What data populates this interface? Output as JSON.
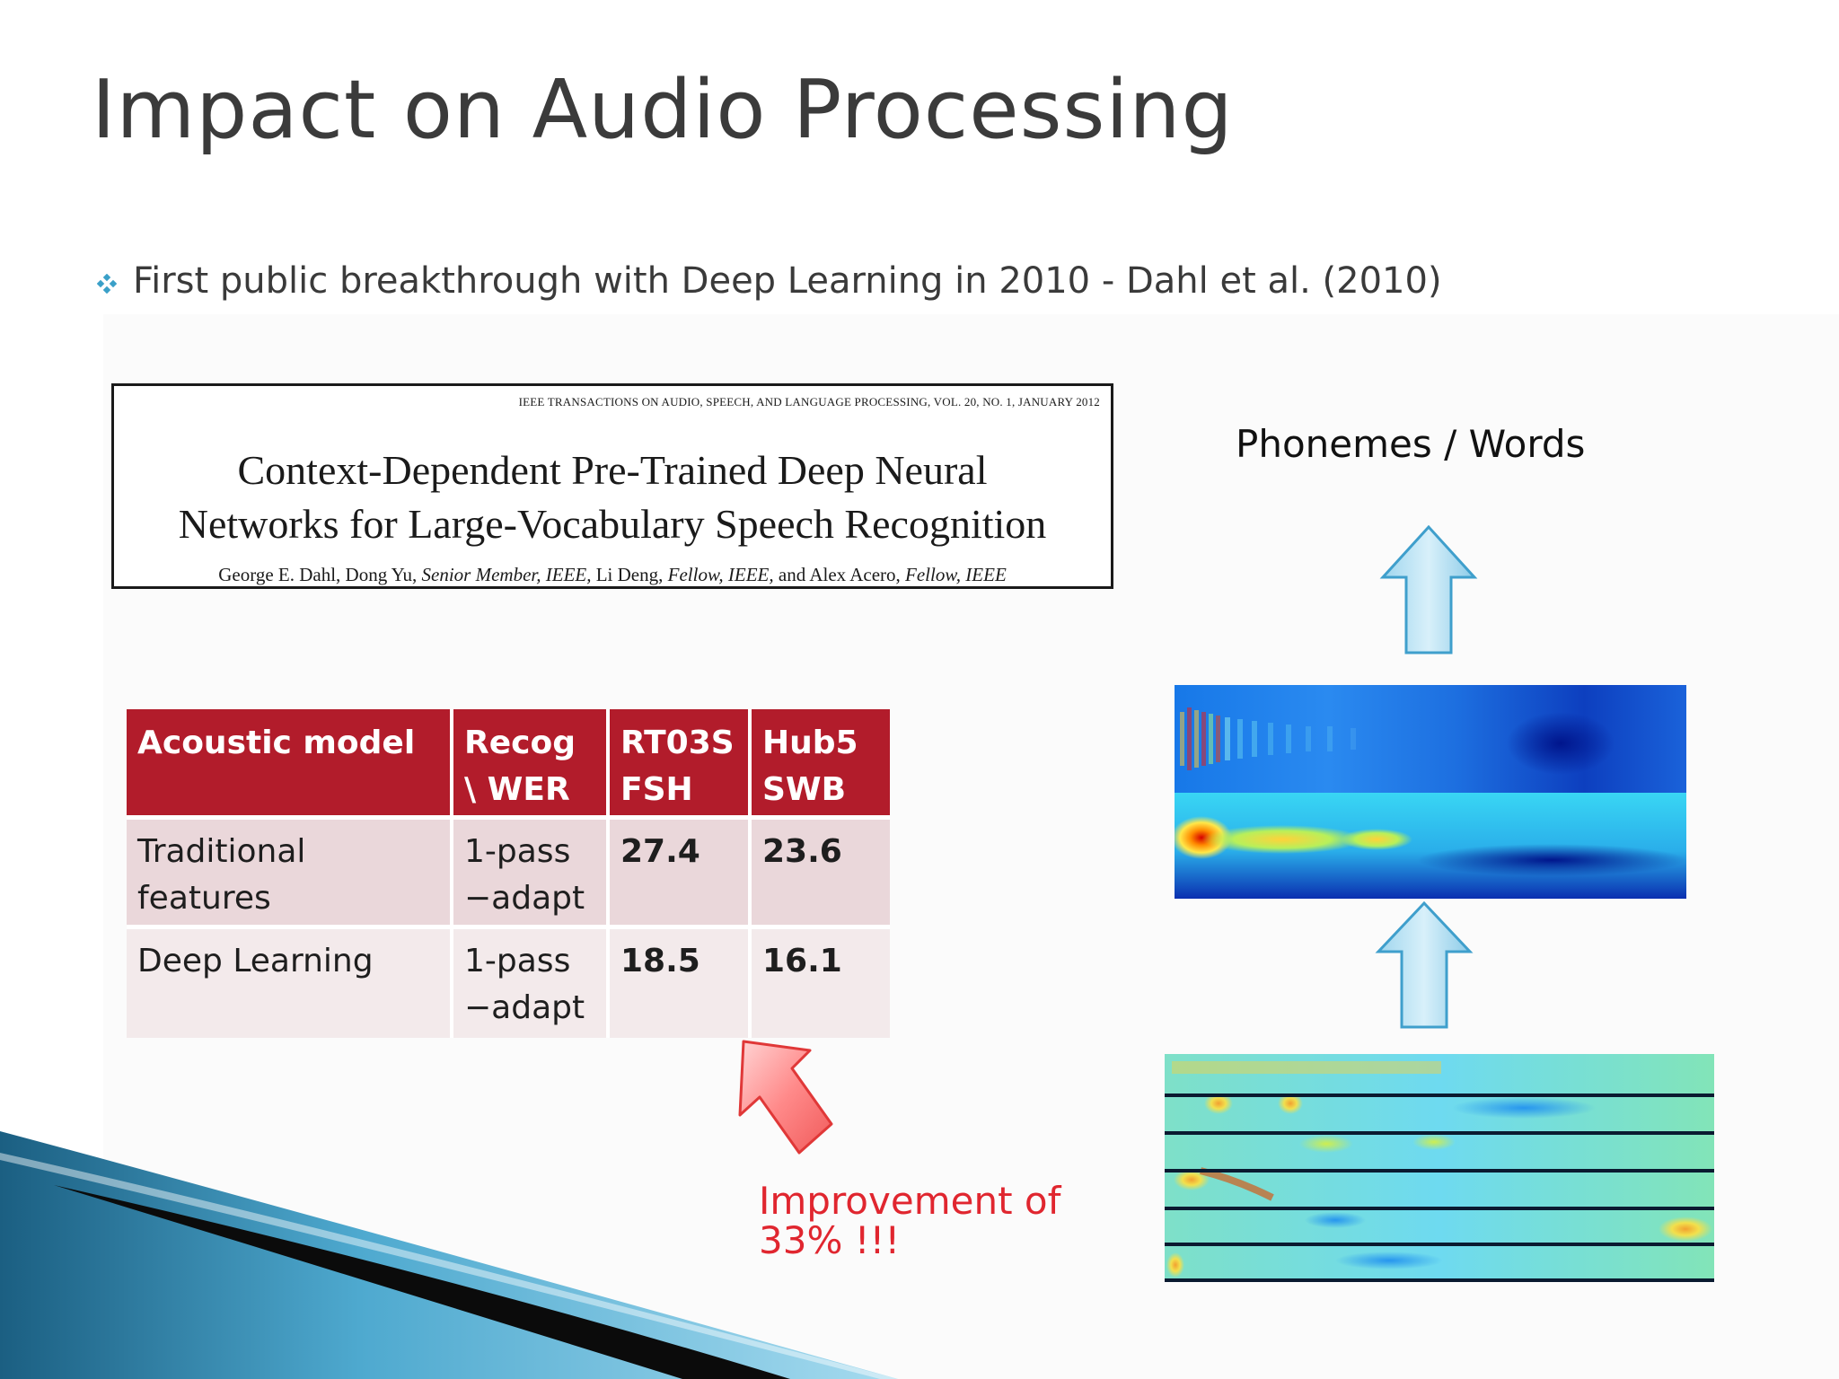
{
  "slide": {
    "title": "Impact on Audio Processing",
    "bullet": {
      "icon": "diamond-bullet-icon",
      "text": "First public breakthrough with Deep Learning in 2010 - Dahl et al. (2010)"
    }
  },
  "paper": {
    "journal": "IEEE TRANSACTIONS ON AUDIO, SPEECH, AND LANGUAGE PROCESSING, VOL. 20, NO. 1, JANUARY 2012",
    "title_line1": "Context-Dependent Pre-Trained Deep Neural",
    "title_line2": "Networks for Large-Vocabulary Speech Recognition",
    "authors": {
      "a1": "George E. Dahl,",
      "a2": "Dong Yu,",
      "a2_role": "Senior Member, IEEE,",
      "a3": "Li Deng,",
      "a3_role": "Fellow, IEEE,",
      "and": "and",
      "a4": "Alex Acero,",
      "a4_role": "Fellow, IEEE"
    }
  },
  "table": {
    "headers": {
      "c1": "Acoustic model",
      "c2_l1": "Recog",
      "c2_l2": "\\ WER",
      "c3_l1": "RT03S",
      "c3_l2": "FSH",
      "c4_l1": "Hub5",
      "c4_l2": "SWB"
    },
    "rows": [
      {
        "model_l1": "Traditional",
        "model_l2": "features",
        "recog_l1": "1-pass",
        "recog_l2": "−adapt",
        "rt03s": "27.4",
        "hub5": "23.6"
      },
      {
        "model_l1": "Deep Learning",
        "model_l2": "",
        "recog_l1": "1-pass",
        "recog_l2": "−adapt",
        "rt03s": "18.5",
        "hub5": "16.1"
      }
    ],
    "header_color": "#b21c2b"
  },
  "diagram": {
    "output_label": "Phonemes / Words",
    "callout_line1": "Improvement of",
    "callout_line2": "33% !!!",
    "callout_color": "#e0262f"
  }
}
